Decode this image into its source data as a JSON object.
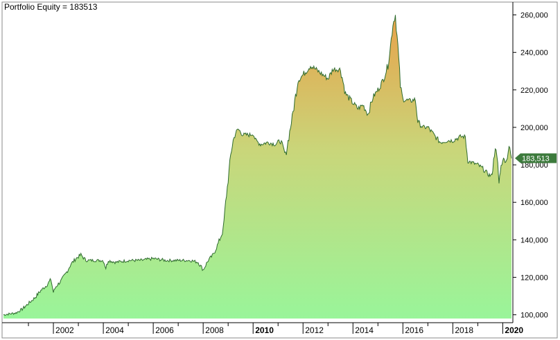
{
  "chart_data": {
    "type": "area",
    "title_label": "Portfolio Equity",
    "title_value": "183513",
    "last_value_label": "183,513",
    "last_value": 183513,
    "y_ticks": [
      "100,000",
      "120,000",
      "140,000",
      "160,000",
      "180,000",
      "200,000",
      "220,000",
      "240,000",
      "260,000"
    ],
    "y_tick_values": [
      100000,
      120000,
      140000,
      160000,
      180000,
      200000,
      220000,
      240000,
      260000
    ],
    "ylim": [
      98000,
      265000
    ],
    "x_ticks": [
      {
        "year": 2002,
        "label": "2002",
        "bold": false
      },
      {
        "year": 2004,
        "label": "2004",
        "bold": false
      },
      {
        "year": 2006,
        "label": "2006",
        "bold": false
      },
      {
        "year": 2008,
        "label": "2008",
        "bold": false
      },
      {
        "year": 2010,
        "label": "2010",
        "bold": true
      },
      {
        "year": 2012,
        "label": "2012",
        "bold": false
      },
      {
        "year": 2014,
        "label": "2014",
        "bold": false
      },
      {
        "year": 2016,
        "label": "2016",
        "bold": false
      },
      {
        "year": 2018,
        "label": "2018",
        "bold": false
      },
      {
        "year": 2020,
        "label": "2020",
        "bold": true
      }
    ],
    "xlim": [
      2000.0,
      2020.35
    ],
    "grid": false,
    "colors": {
      "line": "#2e6b2e",
      "fill_top": "#e8a24a",
      "fill_mid": "#c9d67a",
      "fill_bottom": "#99f59a",
      "badge": "#3c7a3c",
      "axis": "#000000"
    },
    "series": [
      {
        "points": [
          [
            2000.0,
            100000
          ],
          [
            2000.25,
            100500
          ],
          [
            2000.5,
            101000
          ],
          [
            2000.75,
            103000
          ],
          [
            2001.0,
            106000
          ],
          [
            2001.25,
            109000
          ],
          [
            2001.5,
            113000
          ],
          [
            2001.75,
            116000
          ],
          [
            2001.9,
            119000
          ],
          [
            2002.0,
            112000
          ],
          [
            2002.1,
            115000
          ],
          [
            2002.3,
            118000
          ],
          [
            2002.5,
            122000
          ],
          [
            2002.7,
            127000
          ],
          [
            2002.9,
            130000
          ],
          [
            2003.1,
            132000
          ],
          [
            2003.3,
            129000
          ],
          [
            2003.6,
            129000
          ],
          [
            2004.0,
            129000
          ],
          [
            2004.1,
            125000
          ],
          [
            2004.2,
            129000
          ],
          [
            2004.5,
            128000
          ],
          [
            2005.0,
            129000
          ],
          [
            2005.5,
            129000
          ],
          [
            2006.0,
            130000
          ],
          [
            2006.5,
            129000
          ],
          [
            2007.0,
            129000
          ],
          [
            2007.5,
            129000
          ],
          [
            2007.8,
            128000
          ],
          [
            2008.0,
            124000
          ],
          [
            2008.2,
            129000
          ],
          [
            2008.4,
            132000
          ],
          [
            2008.6,
            138000
          ],
          [
            2008.8,
            145000
          ],
          [
            2008.9,
            160000
          ],
          [
            2009.0,
            172000
          ],
          [
            2009.1,
            185000
          ],
          [
            2009.2,
            193000
          ],
          [
            2009.3,
            197000
          ],
          [
            2009.4,
            199000
          ],
          [
            2009.6,
            196000
          ],
          [
            2009.9,
            196000
          ],
          [
            2010.0,
            197000
          ],
          [
            2010.1,
            193000
          ],
          [
            2010.3,
            191000
          ],
          [
            2010.6,
            192000
          ],
          [
            2010.9,
            191000
          ],
          [
            2011.1,
            193000
          ],
          [
            2011.3,
            185000
          ],
          [
            2011.5,
            200000
          ],
          [
            2011.6,
            208000
          ],
          [
            2011.8,
            225000
          ],
          [
            2012.0,
            228000
          ],
          [
            2012.3,
            233000
          ],
          [
            2012.6,
            230000
          ],
          [
            2012.8,
            228000
          ],
          [
            2013.0,
            226000
          ],
          [
            2013.2,
            231000
          ],
          [
            2013.5,
            231000
          ],
          [
            2013.7,
            218000
          ],
          [
            2014.0,
            213000
          ],
          [
            2014.2,
            210000
          ],
          [
            2014.4,
            212000
          ],
          [
            2014.6,
            207000
          ],
          [
            2014.8,
            216000
          ],
          [
            2015.0,
            220000
          ],
          [
            2015.2,
            225000
          ],
          [
            2015.4,
            233000
          ],
          [
            2015.5,
            243000
          ],
          [
            2015.6,
            255000
          ],
          [
            2015.7,
            260000
          ],
          [
            2015.8,
            243000
          ],
          [
            2015.9,
            222000
          ],
          [
            2016.0,
            215000
          ],
          [
            2016.3,
            214000
          ],
          [
            2016.5,
            215000
          ],
          [
            2016.6,
            203000
          ],
          [
            2016.8,
            200000
          ],
          [
            2017.0,
            200000
          ],
          [
            2017.3,
            195000
          ],
          [
            2017.5,
            192000
          ],
          [
            2017.8,
            193000
          ],
          [
            2018.0,
            193000
          ],
          [
            2018.3,
            195000
          ],
          [
            2018.5,
            195000
          ],
          [
            2018.6,
            182000
          ],
          [
            2018.8,
            181000
          ],
          [
            2019.0,
            180000
          ],
          [
            2019.2,
            178000
          ],
          [
            2019.4,
            175000
          ],
          [
            2019.55,
            174000
          ],
          [
            2019.6,
            178000
          ],
          [
            2019.7,
            190000
          ],
          [
            2019.8,
            180000
          ],
          [
            2019.85,
            170000
          ],
          [
            2019.9,
            177000
          ],
          [
            2020.0,
            183000
          ],
          [
            2020.15,
            182000
          ],
          [
            2020.25,
            190000
          ],
          [
            2020.35,
            183513
          ]
        ]
      }
    ]
  }
}
